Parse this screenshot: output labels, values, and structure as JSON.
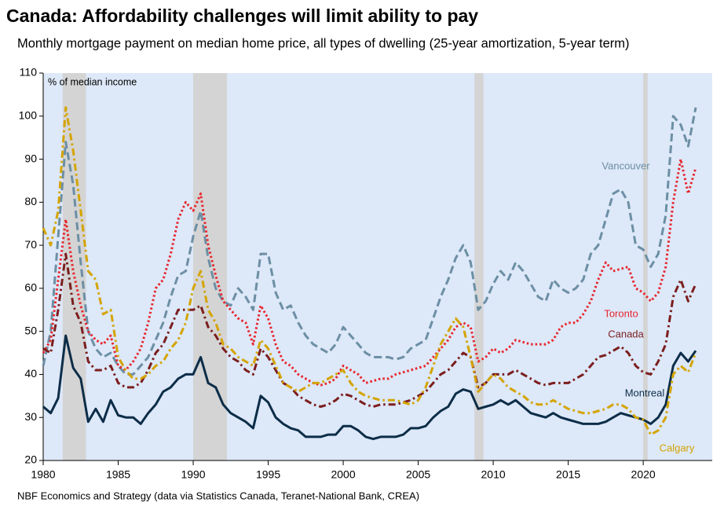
{
  "chart_data": {
    "type": "line",
    "title": "Canada: Affordability challenges will limit ability to pay",
    "subtitle": "Monthly mortgage payment on median home price, all types of dwelling (25-year amortization, 5-year term)",
    "y_label": "% of median income",
    "source": "NBF Economics and Strategy (data via Statistics Canada, Teranet-National Bank, CREA)",
    "xlim": [
      1980,
      2024.6
    ],
    "xticks": [
      1980,
      1985,
      1990,
      1995,
      2000,
      2005,
      2010,
      2015,
      2020
    ],
    "ylim": [
      20,
      110
    ],
    "yticks": [
      20,
      30,
      40,
      50,
      60,
      70,
      80,
      90,
      100,
      110
    ],
    "plot_background": "#dde8f8",
    "shading_color": "#d4d4d4",
    "shaded_periods": [
      [
        1981.3,
        1982.85
      ],
      [
        1990.0,
        1992.25
      ],
      [
        2008.75,
        2009.35
      ],
      [
        2020.0,
        2020.3
      ]
    ],
    "x": [
      1980,
      1980.5,
      1981,
      1981.5,
      1982,
      1982.5,
      1983,
      1983.5,
      1984,
      1984.5,
      1985,
      1985.5,
      1986,
      1986.5,
      1987,
      1987.5,
      1988,
      1988.5,
      1989,
      1989.5,
      1990,
      1990.5,
      1991,
      1991.5,
      1992,
      1992.5,
      1993,
      1993.5,
      1994,
      1994.5,
      1995,
      1995.5,
      1996,
      1996.5,
      1997,
      1997.5,
      1998,
      1998.5,
      1999,
      1999.5,
      2000,
      2000.5,
      2001,
      2001.5,
      2002,
      2002.5,
      2003,
      2003.5,
      2004,
      2004.5,
      2005,
      2005.5,
      2006,
      2006.5,
      2007,
      2007.5,
      2008,
      2008.5,
      2009,
      2009.5,
      2010,
      2010.5,
      2011,
      2011.5,
      2012,
      2012.5,
      2013,
      2013.5,
      2014,
      2014.5,
      2015,
      2015.5,
      2016,
      2016.5,
      2017,
      2017.5,
      2018,
      2018.5,
      2019,
      2019.5,
      2020,
      2020.5,
      2021,
      2021.5,
      2022,
      2022.5,
      2023,
      2023.5
    ],
    "series": [
      {
        "name": "Vancouver",
        "color": "#6c8fa4",
        "dash": "dashed",
        "values": [
          42,
          50,
          72,
          94,
          84,
          66,
          50,
          46,
          44,
          45,
          42,
          40,
          40,
          42,
          44,
          48,
          52,
          58,
          63,
          64,
          72,
          78,
          67,
          60,
          57,
          56,
          60,
          58,
          55,
          68,
          68,
          59,
          55,
          56,
          52,
          49,
          47,
          46,
          45,
          47,
          51,
          49,
          47,
          45,
          44,
          44,
          44,
          43.5,
          44,
          46,
          47,
          48,
          53,
          58,
          62,
          67,
          70,
          66,
          55,
          57,
          61,
          64,
          62,
          66,
          64,
          61,
          58,
          57,
          62,
          60,
          59,
          60,
          62,
          68,
          70,
          76,
          82,
          83,
          80,
          70,
          69,
          65,
          68,
          77,
          100,
          98,
          93,
          102
        ]
      },
      {
        "name": "Toronto",
        "color": "#e8262e",
        "dash": "dotted",
        "values": [
          45,
          48,
          62,
          76,
          64,
          56,
          50,
          48,
          47,
          49,
          42,
          41,
          43,
          46,
          52,
          60,
          62,
          68,
          76,
          80,
          78,
          82,
          70,
          63,
          57,
          55,
          53,
          52,
          47,
          56,
          53,
          47,
          43,
          42,
          40,
          39,
          38,
          37.5,
          38,
          39,
          42,
          41,
          40,
          38,
          38.5,
          39,
          39,
          40,
          40.5,
          41,
          41.5,
          42,
          44,
          46,
          48,
          51,
          52,
          51,
          43,
          44,
          46,
          45,
          46,
          48,
          47.5,
          47,
          47,
          47,
          48,
          51,
          52,
          52,
          54,
          57,
          62,
          66,
          64,
          64.5,
          65,
          60,
          59,
          57,
          59,
          65,
          80,
          90,
          82,
          88
        ]
      },
      {
        "name": "Canada",
        "color": "#7b1e1e",
        "dash": "dashdot",
        "values": [
          46,
          45,
          55,
          68,
          56,
          52,
          43,
          41,
          41,
          42,
          38,
          37,
          37,
          38,
          41,
          45,
          47,
          51,
          55,
          55,
          55,
          56,
          51,
          49,
          46,
          44,
          43,
          41,
          40,
          46,
          44,
          41,
          38,
          37,
          35,
          34,
          33,
          32.5,
          33,
          34,
          35.5,
          35,
          34,
          33,
          32.5,
          33,
          33,
          33,
          33.5,
          34,
          35,
          36,
          38,
          40,
          41,
          43,
          45,
          44,
          37,
          38,
          40,
          40,
          40,
          41,
          40,
          39,
          38,
          37.5,
          38,
          38,
          38,
          39,
          40,
          42,
          44,
          44.5,
          45.5,
          46.5,
          45,
          42,
          40.5,
          40,
          43,
          47,
          58,
          62,
          57,
          61
        ]
      },
      {
        "name": "Montreal",
        "color": "#0c2d48",
        "dash": "solid",
        "values": [
          32.5,
          31,
          34.5,
          49,
          41.5,
          39,
          29,
          32,
          29,
          34,
          30.5,
          30,
          30,
          28.5,
          31,
          33,
          36,
          37,
          39,
          40,
          40,
          44,
          38,
          37,
          33,
          31,
          30,
          29,
          27.5,
          35,
          33.5,
          30,
          28.5,
          27.5,
          27,
          25.5,
          25.5,
          25.5,
          26,
          26,
          28,
          28,
          27,
          25.5,
          25,
          25.5,
          25.5,
          25.5,
          26,
          27.5,
          27.5,
          28,
          30,
          31.5,
          32.5,
          35.5,
          36.5,
          36,
          32,
          32.5,
          33,
          34,
          33,
          34,
          32.5,
          31,
          30.5,
          30,
          31,
          30,
          29.5,
          29,
          28.5,
          28.5,
          28.5,
          29,
          30,
          31,
          30.5,
          30,
          29.5,
          28.5,
          30,
          33,
          42,
          45,
          43,
          45.5
        ]
      },
      {
        "name": "Calgary",
        "color": "#d4a400",
        "dash": "dashdot",
        "values": [
          74,
          70,
          78,
          102,
          92,
          78,
          64,
          62,
          54,
          55,
          44,
          41,
          39,
          39,
          40,
          42,
          43,
          46,
          48,
          52,
          60,
          64,
          55,
          52,
          47,
          46,
          44,
          43,
          42,
          48,
          46,
          42,
          38,
          37,
          36,
          37,
          38,
          38,
          39,
          40,
          41,
          38,
          36,
          35,
          34.5,
          34,
          34,
          34,
          33.5,
          33,
          34,
          37,
          42,
          47,
          50,
          53,
          51,
          44,
          36,
          38,
          40,
          39,
          37,
          36,
          35,
          33.5,
          33,
          33,
          34,
          33,
          32,
          31.5,
          31,
          31,
          31.5,
          32,
          33,
          33,
          32,
          30,
          29.5,
          26,
          27,
          30,
          40,
          42,
          40.5,
          45
        ]
      }
    ]
  }
}
